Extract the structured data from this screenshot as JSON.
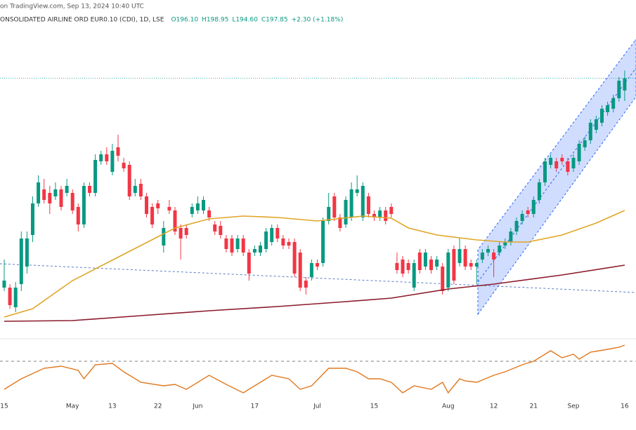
{
  "header": {
    "source": "on TradingView.com, Sep 13, 2024 10:40 UTC",
    "symbol": "ONSOLIDATED AIRLINE ORD EUR0.10 (CDI), 1D, LSE",
    "ohlc": [
      "O196.10",
      "H198.95",
      "L194.60",
      "C197.85",
      "+2.30 (+1.18%)"
    ]
  },
  "chart_data": {
    "type": "candlestick",
    "categories": [
      "15",
      null,
      null,
      null,
      null,
      null,
      null,
      null,
      null,
      null,
      null,
      null,
      "May",
      null,
      null,
      null,
      null,
      null,
      null,
      "13",
      null,
      null,
      null,
      null,
      null,
      null,
      null,
      "22",
      null,
      null,
      null,
      null,
      null,
      null,
      "Jun",
      null,
      null,
      null,
      null,
      null,
      null,
      null,
      null,
      null,
      "17",
      null,
      null,
      null,
      null,
      null,
      null,
      null,
      null,
      null,
      null,
      "Jul",
      null,
      null,
      null,
      null,
      null,
      null,
      null,
      null,
      null,
      "15",
      null,
      null,
      null,
      null,
      null,
      null,
      null,
      null,
      null,
      null,
      null,
      null,
      "Aug",
      null,
      null,
      null,
      null,
      null,
      null,
      null,
      "12",
      null,
      null,
      null,
      null,
      null,
      null,
      "21",
      null,
      null,
      null,
      null,
      null,
      null,
      "Sep",
      null,
      null,
      null,
      null,
      null,
      null,
      null,
      null,
      "16"
    ],
    "open": [
      168,
      168,
      165.2,
      168.5,
      171,
      175.5,
      180,
      182,
      181.5,
      181,
      182,
      181.5,
      181.5,
      179.5,
      177,
      182.5,
      181.5,
      186,
      187,
      184.5,
      188,
      185.8,
      185.5,
      181.5,
      182.8,
      181,
      179.5,
      180,
      174,
      179.5,
      179,
      176.5,
      176.5,
      178.5,
      179,
      179,
      179,
      177,
      176.8,
      175,
      175,
      173.5,
      175,
      173,
      173,
      173,
      173.5,
      174.5,
      176.5,
      175,
      174.5,
      174.5,
      173,
      169,
      169.5,
      171.5,
      171.5,
      177.5,
      181,
      178,
      177,
      178,
      181.5,
      178,
      181,
      178.5,
      178,
      179,
      179.5,
      171.5,
      172,
      171.5,
      168,
      173,
      171,
      172,
      171,
      171,
      168,
      173.5,
      171.5,
      173.5,
      171.5,
      171,
      172,
      173,
      173,
      173,
      174,
      174.5,
      176,
      177.5,
      179,
      178.5,
      180.5,
      183,
      185.5,
      186,
      186.5,
      186,
      185,
      186,
      188,
      189,
      190.5,
      191.5,
      193,
      193.5,
      195,
      196.1
    ],
    "high": [
      172,
      168.5,
      168.8,
      176,
      176,
      181,
      184,
      183.5,
      182.5,
      183,
      182.5,
      183.5,
      182,
      180,
      183,
      183,
      187,
      187.5,
      188,
      188.5,
      189.8,
      186.5,
      186,
      183.5,
      183.5,
      181.5,
      180,
      180.5,
      177.5,
      180.5,
      179.5,
      177,
      177,
      180,
      181,
      181,
      179.5,
      177.5,
      177.5,
      175.5,
      175.5,
      175.5,
      175.5,
      173.5,
      174,
      174.5,
      176.5,
      177,
      177,
      175.5,
      175,
      175,
      173.5,
      169.5,
      172,
      172,
      178,
      181.5,
      181.5,
      178.5,
      181,
      183,
      184,
      183,
      181.5,
      179,
      179.5,
      179.5,
      180,
      173,
      172.5,
      172,
      172,
      173.5,
      173.5,
      172.5,
      172.5,
      171.5,
      173.5,
      174,
      175,
      174,
      172,
      172,
      173.5,
      174,
      173.5,
      174.5,
      175,
      176.5,
      178,
      179,
      179.5,
      181,
      183.5,
      186.5,
      187,
      186.5,
      187,
      186.5,
      187,
      189,
      189.5,
      192,
      192.5,
      194,
      194.5,
      195.5,
      198,
      198.95
    ],
    "low": [
      167.5,
      165,
      164.5,
      167.5,
      170,
      174.5,
      179.5,
      180,
      178.5,
      180.5,
      179,
      181,
      178.5,
      176,
      176.5,
      181,
      181,
      185.5,
      185.5,
      184,
      186,
      184.5,
      180.5,
      181,
      180.5,
      178,
      176.5,
      178.5,
      173,
      178.5,
      175.5,
      172,
      175,
      178,
      178.5,
      178.5,
      177.5,
      175.5,
      175,
      173,
      172.5,
      173,
      172.5,
      169,
      172.5,
      172.5,
      173,
      174,
      174.5,
      173.5,
      173.5,
      169.5,
      167.5,
      167,
      169,
      170.5,
      171,
      177,
      177.5,
      176,
      176.5,
      177.5,
      181,
      177.5,
      178,
      177.5,
      177.5,
      177,
      178,
      170,
      169.5,
      170,
      167.5,
      170,
      170.5,
      170,
      170.5,
      167,
      167.5,
      168.5,
      171,
      170.5,
      170.5,
      168.5,
      171.5,
      172.5,
      169.5,
      172.5,
      173.5,
      174,
      175.5,
      177,
      178,
      178,
      180,
      182.5,
      185,
      184.5,
      185.5,
      184,
      184.5,
      185.5,
      187.5,
      188.5,
      190,
      191,
      192.5,
      193,
      194.5,
      194.6
    ],
    "close": [
      169,
      165.5,
      168,
      175,
      175,
      180,
      183,
      180.5,
      180,
      182,
      179.5,
      182.5,
      179,
      177,
      182.5,
      181.5,
      186.2,
      187,
      186,
      187.5,
      186.8,
      185,
      181,
      182.5,
      181,
      178.5,
      177,
      179.3,
      176.5,
      179,
      176,
      175,
      175.5,
      179.5,
      180,
      180.5,
      178,
      176,
      175.5,
      173.5,
      173,
      175,
      173,
      170,
      173.5,
      174,
      176,
      176.5,
      175,
      174,
      174,
      170,
      168,
      168,
      171.5,
      171,
      177.5,
      179.5,
      178,
      176.5,
      180.5,
      182,
      182,
      182.5,
      178.5,
      178,
      179,
      177.5,
      178.5,
      170.5,
      170,
      170.5,
      171.5,
      170.5,
      173,
      170.5,
      172,
      167.5,
      173,
      169,
      173.5,
      171,
      171,
      171.5,
      173,
      173.5,
      172,
      174,
      174.5,
      176,
      177.5,
      178.5,
      178.5,
      180.5,
      183,
      186,
      186.5,
      185,
      186,
      184.5,
      186.5,
      188.5,
      189,
      191.5,
      192,
      193.5,
      194,
      195,
      197.5,
      197.85
    ],
    "up_color": "#089981",
    "down_color": "#f23645",
    "ylim": [
      162,
      206
    ],
    "lines": [
      {
        "color": "#e0a526",
        "x": [
          0,
          5,
          12,
          18,
          24,
          30,
          36,
          42,
          48,
          55,
          63,
          68,
          71,
          76,
          83,
          88,
          92,
          98,
          104,
          109
        ],
        "values": [
          163.8,
          165,
          169,
          171.5,
          174,
          176.5,
          177.8,
          178.2,
          178,
          177.5,
          178.2,
          177.9,
          176.5,
          175.5,
          174.8,
          174.5,
          174.5,
          175.5,
          177.2,
          179
        ]
      },
      {
        "color": "#8b1a2b",
        "x": [
          0,
          12,
          24,
          36,
          48,
          60,
          68,
          78,
          86,
          98,
          109
        ],
        "values": [
          163.2,
          163.3,
          164,
          164.7,
          165.3,
          166,
          166.5,
          167.8,
          168.5,
          169.8,
          171.2
        ]
      }
    ],
    "rsi": {
      "color": "#e0781e",
      "ylim": [
        20,
        95
      ],
      "level": 70,
      "x": [
        0,
        3,
        7,
        10,
        13,
        14,
        16,
        19,
        21,
        24,
        28,
        30,
        32,
        36,
        39,
        42,
        45,
        47,
        50,
        52,
        54,
        57,
        60,
        62,
        64,
        66,
        68,
        70,
        72,
        75,
        77,
        78,
        80,
        81,
        83,
        86,
        88,
        91,
        93,
        96,
        98,
        100,
        101,
        103,
        106,
        108,
        109
      ],
      "values": [
        36.7,
        49.2,
        61.7,
        64.2,
        59.2,
        49.2,
        65.8,
        67.5,
        57.5,
        45,
        40.8,
        42.5,
        36.7,
        53.3,
        42.5,
        32.5,
        45,
        53.3,
        49.2,
        36.7,
        40.8,
        61.7,
        61.7,
        57.5,
        49.2,
        49.2,
        45,
        32.5,
        40.8,
        36.7,
        45,
        32.5,
        49.2,
        46.7,
        45,
        53.3,
        57.5,
        65.8,
        70,
        82.5,
        74.2,
        78.3,
        72.5,
        80.8,
        84.2,
        86.7,
        89.2
      ]
    }
  }
}
